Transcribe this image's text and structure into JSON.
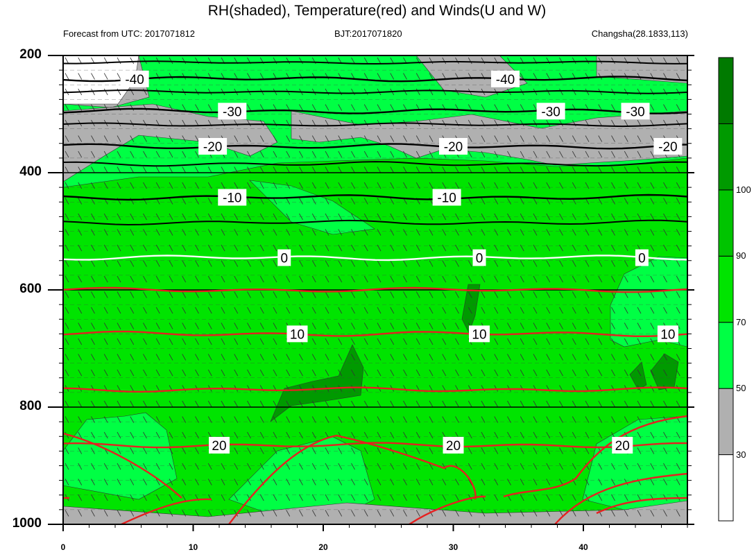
{
  "chart_data": {
    "type": "heatmap",
    "title": "RH(shaded), Temperature(red) and Winds(U and W)",
    "subtitle_left": "Forecast from UTC: 2017071812",
    "subtitle_center": "BJT:2017071820",
    "subtitle_right": "Changsha(28.1833,113)",
    "x_ticks": [
      "0",
      "10",
      "20",
      "30",
      "40"
    ],
    "x_tick_values": [
      0,
      10,
      20,
      30,
      40
    ],
    "xlim": [
      0,
      48
    ],
    "y_ticks": [
      "200",
      "400",
      "600",
      "800",
      "1000"
    ],
    "y_tick_values": [
      200,
      400,
      600,
      800,
      1000
    ],
    "ylim": [
      1000,
      200
    ],
    "colorbar": {
      "labels": [
        "30",
        "50",
        "70",
        "90",
        "100"
      ],
      "levels": [
        30,
        50,
        70,
        90,
        100
      ],
      "colors": [
        "#ffffff",
        "#b0b0b0",
        "#00ff44",
        "#00e400",
        "#00c400",
        "#009a00",
        "#007a00"
      ]
    },
    "temperature_contours": [
      {
        "level": -40,
        "label": "-40",
        "pressure": 240,
        "label_x": [
          5.5,
          34
        ]
      },
      {
        "level": -30,
        "label": "-30",
        "pressure": 295,
        "label_x": [
          13,
          37.5,
          44
        ]
      },
      {
        "level": -20,
        "label": "-20",
        "pressure": 355,
        "label_x": [
          11.5,
          30,
          46.5
        ]
      },
      {
        "level": -10,
        "label": "-10",
        "pressure": 442,
        "label_x": [
          13,
          29.5
        ]
      },
      {
        "level": 0,
        "label": "0",
        "pressure": 545,
        "label_x": [
          17,
          32,
          44.5
        ]
      },
      {
        "level": 10,
        "label": "10",
        "pressure": 675,
        "label_x": [
          18,
          32,
          46.5
        ]
      },
      {
        "level": 20,
        "label": "20",
        "pressure": 865,
        "label_x": [
          12,
          30,
          43
        ]
      }
    ]
  }
}
